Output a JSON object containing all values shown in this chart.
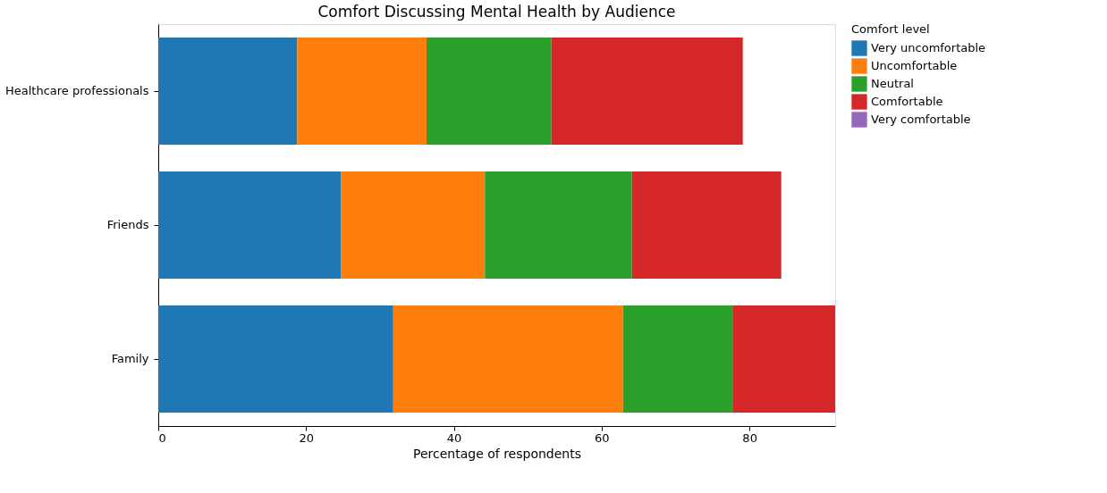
{
  "chart_data": {
    "type": "bar",
    "orientation": "horizontal",
    "stacked": true,
    "title": "Comfort Discussing Mental Health by Audience",
    "xlabel": "Percentage of respondents",
    "legend_title": "Comfort level",
    "legend": "top right",
    "grid": false,
    "categories": [
      "Healthcare professionals",
      "Friends",
      "Family"
    ],
    "xlim": [
      0,
      91.6
    ],
    "xticks": [
      0,
      20,
      40,
      60,
      80
    ],
    "series": [
      {
        "name": "Very uncomfortable",
        "color": "#1f77b4",
        "values": [
          18.8,
          24.7,
          31.8
        ]
      },
      {
        "name": "Uncomfortable",
        "color": "#ff7f0e",
        "values": [
          17.5,
          19.5,
          31.1
        ]
      },
      {
        "name": "Neutral",
        "color": "#2ca02c",
        "values": [
          16.9,
          19.9,
          14.9
        ]
      },
      {
        "name": "Comfortable",
        "color": "#d62728",
        "values": [
          25.9,
          20.2,
          13.8
        ]
      },
      {
        "name": "Very comfortable",
        "color": "#9467bd",
        "values": [
          0,
          0,
          0
        ]
      }
    ]
  }
}
